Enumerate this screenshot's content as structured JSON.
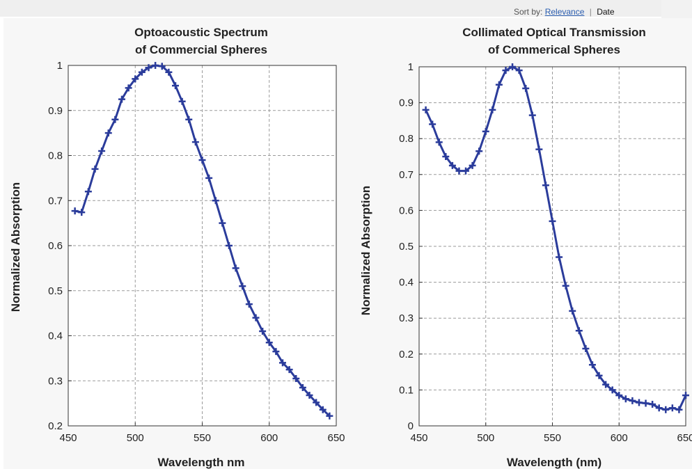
{
  "sort_bar": {
    "prefix": "Sort by:",
    "relevance": "Relevance",
    "separator": "|",
    "date": "Date"
  },
  "colors": {
    "series": "#2b3c9b",
    "grid": "#9a9a9a",
    "axes": "#333333",
    "plot_bg": "#ffffff"
  },
  "chart_data": [
    {
      "type": "line",
      "title": [
        "Optoacoustic Spectrum",
        "of Commercial Spheres"
      ],
      "xlabel": "Wavelength nm",
      "ylabel": "Normalized Absorption",
      "xlim": [
        450,
        650
      ],
      "ylim": [
        0.2,
        1.0
      ],
      "xticks": [
        450,
        500,
        550,
        600,
        650
      ],
      "yticks": [
        0.2,
        0.3,
        0.4,
        0.5,
        0.6,
        0.7,
        0.8,
        0.9,
        1
      ],
      "grid": true,
      "marker": "plus",
      "series": [
        {
          "x": [
            455,
            460,
            465,
            470,
            475,
            480,
            485,
            490,
            495,
            500,
            505,
            510,
            515,
            520,
            525,
            530,
            535,
            540,
            545,
            550,
            555,
            560,
            565,
            570,
            575,
            580,
            585,
            590,
            595,
            600,
            605,
            610,
            615,
            620,
            625,
            630,
            635,
            640,
            645
          ],
          "y": [
            0.677,
            0.674,
            0.72,
            0.77,
            0.81,
            0.85,
            0.88,
            0.925,
            0.95,
            0.97,
            0.985,
            0.995,
            1.0,
            0.998,
            0.985,
            0.955,
            0.92,
            0.88,
            0.83,
            0.79,
            0.75,
            0.7,
            0.65,
            0.6,
            0.55,
            0.51,
            0.47,
            0.44,
            0.41,
            0.385,
            0.365,
            0.34,
            0.325,
            0.305,
            0.285,
            0.268,
            0.252,
            0.236,
            0.222
          ]
        }
      ]
    },
    {
      "type": "line",
      "title": [
        "Collimated Optical Transmission",
        "of Commerical Spheres"
      ],
      "xlabel": "Wavelength (nm)",
      "ylabel": "Normalized Absorption",
      "xlim": [
        450,
        650
      ],
      "ylim": [
        0,
        1.0
      ],
      "xticks": [
        450,
        500,
        550,
        600,
        650
      ],
      "yticks": [
        0,
        0.1,
        0.2,
        0.3,
        0.4,
        0.5,
        0.6,
        0.7,
        0.8,
        0.9,
        1
      ],
      "grid": true,
      "marker": "plus",
      "series": [
        {
          "x": [
            455,
            460,
            465,
            470,
            475,
            480,
            485,
            490,
            495,
            500,
            505,
            510,
            515,
            520,
            525,
            530,
            535,
            540,
            545,
            550,
            555,
            560,
            565,
            570,
            575,
            580,
            585,
            590,
            595,
            600,
            605,
            610,
            615,
            620,
            625,
            630,
            635,
            640,
            645,
            650
          ],
          "y": [
            0.88,
            0.84,
            0.79,
            0.75,
            0.725,
            0.71,
            0.71,
            0.725,
            0.765,
            0.82,
            0.88,
            0.95,
            0.99,
            1.0,
            0.99,
            0.94,
            0.865,
            0.77,
            0.67,
            0.57,
            0.47,
            0.39,
            0.32,
            0.265,
            0.215,
            0.17,
            0.14,
            0.115,
            0.1,
            0.085,
            0.075,
            0.07,
            0.065,
            0.063,
            0.06,
            0.05,
            0.045,
            0.05,
            0.045,
            0.085
          ]
        }
      ]
    }
  ]
}
